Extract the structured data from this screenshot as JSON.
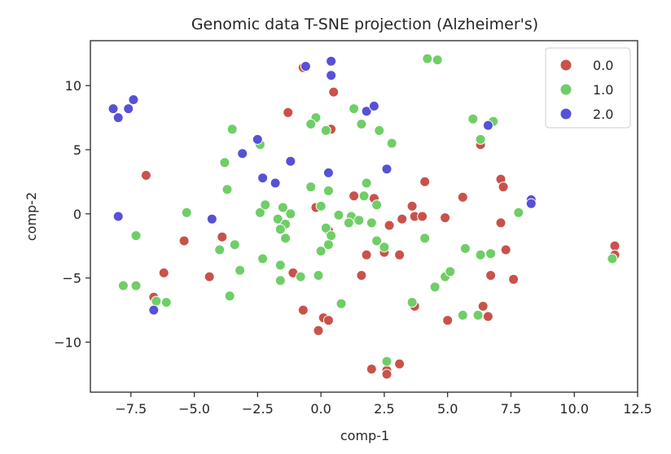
{
  "chart_data": {
    "type": "scatter",
    "title": "Genomic data T-SNE projection (Alzheimer's)",
    "xlabel": "comp-1",
    "ylabel": "comp-2",
    "xlim": [
      -9.1,
      12.5
    ],
    "ylim": [
      -13.9,
      13.5
    ],
    "xticks": [
      -7.5,
      -5.0,
      -2.5,
      0.0,
      2.5,
      5.0,
      7.5,
      10.0,
      12.5
    ],
    "xtick_labels": [
      "−7.5",
      "−5.0",
      "−2.5",
      "0.0",
      "2.5",
      "5.0",
      "7.5",
      "10.0",
      "12.5"
    ],
    "yticks": [
      -10,
      -5,
      0,
      5,
      10
    ],
    "ytick_labels": [
      "−10",
      "−5",
      "0",
      "5",
      "10"
    ],
    "grid": false,
    "legend_position": "top-right",
    "series": [
      {
        "name": "0.0",
        "color": "#c9524a",
        "points": [
          [
            -0.7,
            11.4
          ],
          [
            0.5,
            9.5
          ],
          [
            0.4,
            6.6
          ],
          [
            -1.3,
            7.9
          ],
          [
            -6.9,
            3.0
          ],
          [
            -5.4,
            -2.1
          ],
          [
            -3.9,
            -1.8
          ],
          [
            -6.2,
            -4.6
          ],
          [
            -4.4,
            -4.9
          ],
          [
            -6.6,
            -6.5
          ],
          [
            -1.1,
            -4.6
          ],
          [
            -0.7,
            -7.5
          ],
          [
            -0.1,
            -9.1
          ],
          [
            0.1,
            -8.1
          ],
          [
            0.3,
            -8.3
          ],
          [
            0.3,
            -1.3
          ],
          [
            -0.2,
            0.5
          ],
          [
            1.3,
            1.4
          ],
          [
            2.1,
            1.2
          ],
          [
            2.5,
            -3.0
          ],
          [
            1.8,
            -3.2
          ],
          [
            1.6,
            -4.8
          ],
          [
            2.7,
            -0.9
          ],
          [
            3.1,
            -3.2
          ],
          [
            3.2,
            -0.4
          ],
          [
            3.7,
            -0.2
          ],
          [
            3.6,
            0.6
          ],
          [
            4.1,
            2.5
          ],
          [
            4.0,
            -0.2
          ],
          [
            4.9,
            -0.3
          ],
          [
            3.7,
            -7.2
          ],
          [
            5.0,
            -8.3
          ],
          [
            2.0,
            -12.1
          ],
          [
            2.6,
            -12.2
          ],
          [
            2.6,
            -12.5
          ],
          [
            3.1,
            -11.7
          ],
          [
            5.6,
            1.3
          ],
          [
            6.3,
            5.4
          ],
          [
            7.1,
            2.7
          ],
          [
            7.2,
            2.1
          ],
          [
            7.1,
            -0.7
          ],
          [
            7.3,
            -2.8
          ],
          [
            6.7,
            -4.8
          ],
          [
            7.6,
            -5.1
          ],
          [
            6.4,
            -7.2
          ],
          [
            6.6,
            -8.0
          ],
          [
            11.6,
            -2.5
          ],
          [
            11.6,
            -3.2
          ]
        ]
      },
      {
        "name": "1.0",
        "color": "#6fce66",
        "points": [
          [
            4.2,
            12.1
          ],
          [
            4.6,
            12.0
          ],
          [
            -3.5,
            6.6
          ],
          [
            -0.2,
            7.5
          ],
          [
            -0.4,
            7.0
          ],
          [
            0.2,
            6.5
          ],
          [
            1.3,
            8.2
          ],
          [
            1.6,
            7.0
          ],
          [
            2.3,
            6.5
          ],
          [
            2.8,
            5.5
          ],
          [
            -3.8,
            4.0
          ],
          [
            -2.4,
            5.4
          ],
          [
            -3.7,
            1.9
          ],
          [
            -5.3,
            0.1
          ],
          [
            -2.4,
            0.1
          ],
          [
            -2.2,
            0.7
          ],
          [
            -1.5,
            0.5
          ],
          [
            -1.7,
            -0.4
          ],
          [
            -1.4,
            -0.8
          ],
          [
            -1.2,
            0.0
          ],
          [
            -1.6,
            -1.2
          ],
          [
            -1.4,
            -1.9
          ],
          [
            -0.4,
            2.1
          ],
          [
            0.3,
            1.8
          ],
          [
            0.0,
            0.6
          ],
          [
            0.7,
            -0.1
          ],
          [
            1.2,
            -0.2
          ],
          [
            1.1,
            -0.7
          ],
          [
            1.5,
            -0.5
          ],
          [
            1.7,
            1.4
          ],
          [
            1.8,
            2.4
          ],
          [
            2.2,
            0.7
          ],
          [
            2.0,
            -0.7
          ],
          [
            2.5,
            -2.6
          ],
          [
            2.2,
            -2.1
          ],
          [
            0.2,
            -1.1
          ],
          [
            0.4,
            -1.7
          ],
          [
            0.3,
            -2.4
          ],
          [
            0.0,
            -2.9
          ],
          [
            -0.1,
            -4.8
          ],
          [
            -4.0,
            -2.8
          ],
          [
            -3.4,
            -2.4
          ],
          [
            -3.2,
            -4.4
          ],
          [
            -2.3,
            -3.5
          ],
          [
            -1.6,
            -4.0
          ],
          [
            -1.6,
            -5.2
          ],
          [
            -0.8,
            -4.9
          ],
          [
            -3.6,
            -6.4
          ],
          [
            -7.3,
            -1.7
          ],
          [
            -7.8,
            -5.6
          ],
          [
            -7.3,
            -5.6
          ],
          [
            -6.5,
            -6.8
          ],
          [
            -6.1,
            -6.9
          ],
          [
            0.8,
            -7.0
          ],
          [
            2.6,
            -11.5
          ],
          [
            3.6,
            -6.9
          ],
          [
            4.1,
            -1.9
          ],
          [
            4.5,
            -5.7
          ],
          [
            4.9,
            -4.9
          ],
          [
            5.1,
            -4.5
          ],
          [
            5.7,
            -2.7
          ],
          [
            5.6,
            -7.9
          ],
          [
            6.2,
            -7.9
          ],
          [
            6.3,
            -3.2
          ],
          [
            6.7,
            -3.1
          ],
          [
            6.0,
            7.4
          ],
          [
            6.3,
            5.8
          ],
          [
            6.8,
            7.2
          ],
          [
            7.8,
            0.1
          ],
          [
            11.5,
            -3.5
          ]
        ]
      },
      {
        "name": "2.0",
        "color": "#5651d6",
        "points": [
          [
            -8.2,
            8.2
          ],
          [
            -8.0,
            7.5
          ],
          [
            -7.6,
            8.2
          ],
          [
            -7.4,
            8.9
          ],
          [
            -8.0,
            -0.2
          ],
          [
            -6.6,
            -7.5
          ],
          [
            -0.6,
            11.5
          ],
          [
            0.4,
            11.9
          ],
          [
            0.4,
            10.8
          ],
          [
            1.8,
            8.0
          ],
          [
            2.1,
            8.4
          ],
          [
            -3.1,
            4.7
          ],
          [
            -2.5,
            5.8
          ],
          [
            -1.2,
            4.1
          ],
          [
            0.3,
            3.2
          ],
          [
            -2.3,
            2.8
          ],
          [
            -1.8,
            2.4
          ],
          [
            -4.3,
            -0.4
          ],
          [
            2.6,
            3.5
          ],
          [
            6.6,
            6.9
          ],
          [
            8.3,
            1.1
          ],
          [
            8.3,
            0.8
          ]
        ]
      }
    ]
  }
}
